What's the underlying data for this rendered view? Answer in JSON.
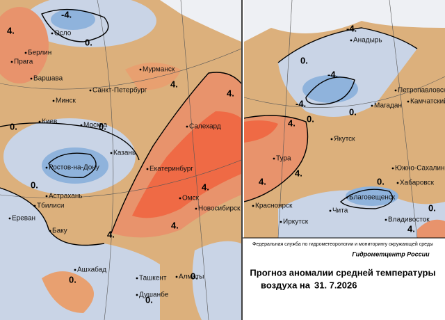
{
  "left_map": {
    "cities": [
      "Осло",
      "Берлин",
      "Прага",
      "Варшава",
      "Мурманск",
      "Санкт-Петербург",
      "Минск",
      "Киев",
      "Москва",
      "Салехард",
      "Казань",
      "Ростов-на-Дону",
      "Екатеринбург",
      "Астрахань",
      "Тбилиси",
      "Омск",
      "Новосибирск",
      "Ереван",
      "Баку",
      "Ашхабад",
      "Ташкент",
      "Алматы",
      "Душанбе"
    ],
    "isoline_labels": [
      "-4.",
      "4.",
      "0.",
      "4.",
      "0.",
      "0.",
      "4.",
      "0.",
      "4.",
      "4.",
      "4.",
      "0.",
      "0.",
      "0."
    ]
  },
  "right_map": {
    "cities": [
      "Анадырь",
      "Петропавловск",
      "Камчатский",
      "Магадан",
      "Якутск",
      "Тура",
      "Южно-Сахалинск",
      "Хабаровск",
      "Благовещенск",
      "Красноярск",
      "Чита",
      "Иркутск",
      "Владивосток"
    ],
    "isoline_labels": [
      "-4.",
      "0.",
      "-4.",
      "-4.",
      "0.",
      "0.",
      "4.",
      "4.",
      "4.",
      "0.",
      "4.",
      "0."
    ]
  },
  "footer": {
    "agency": "Федеральная служба по гидрометеорологии и мониторингу окружающей среды",
    "center": "Гидрометцентр России",
    "title_line1": "Прогноз аномалии средней температуры",
    "title_line2": "воздуха на",
    "date": "31. 7.2026"
  }
}
